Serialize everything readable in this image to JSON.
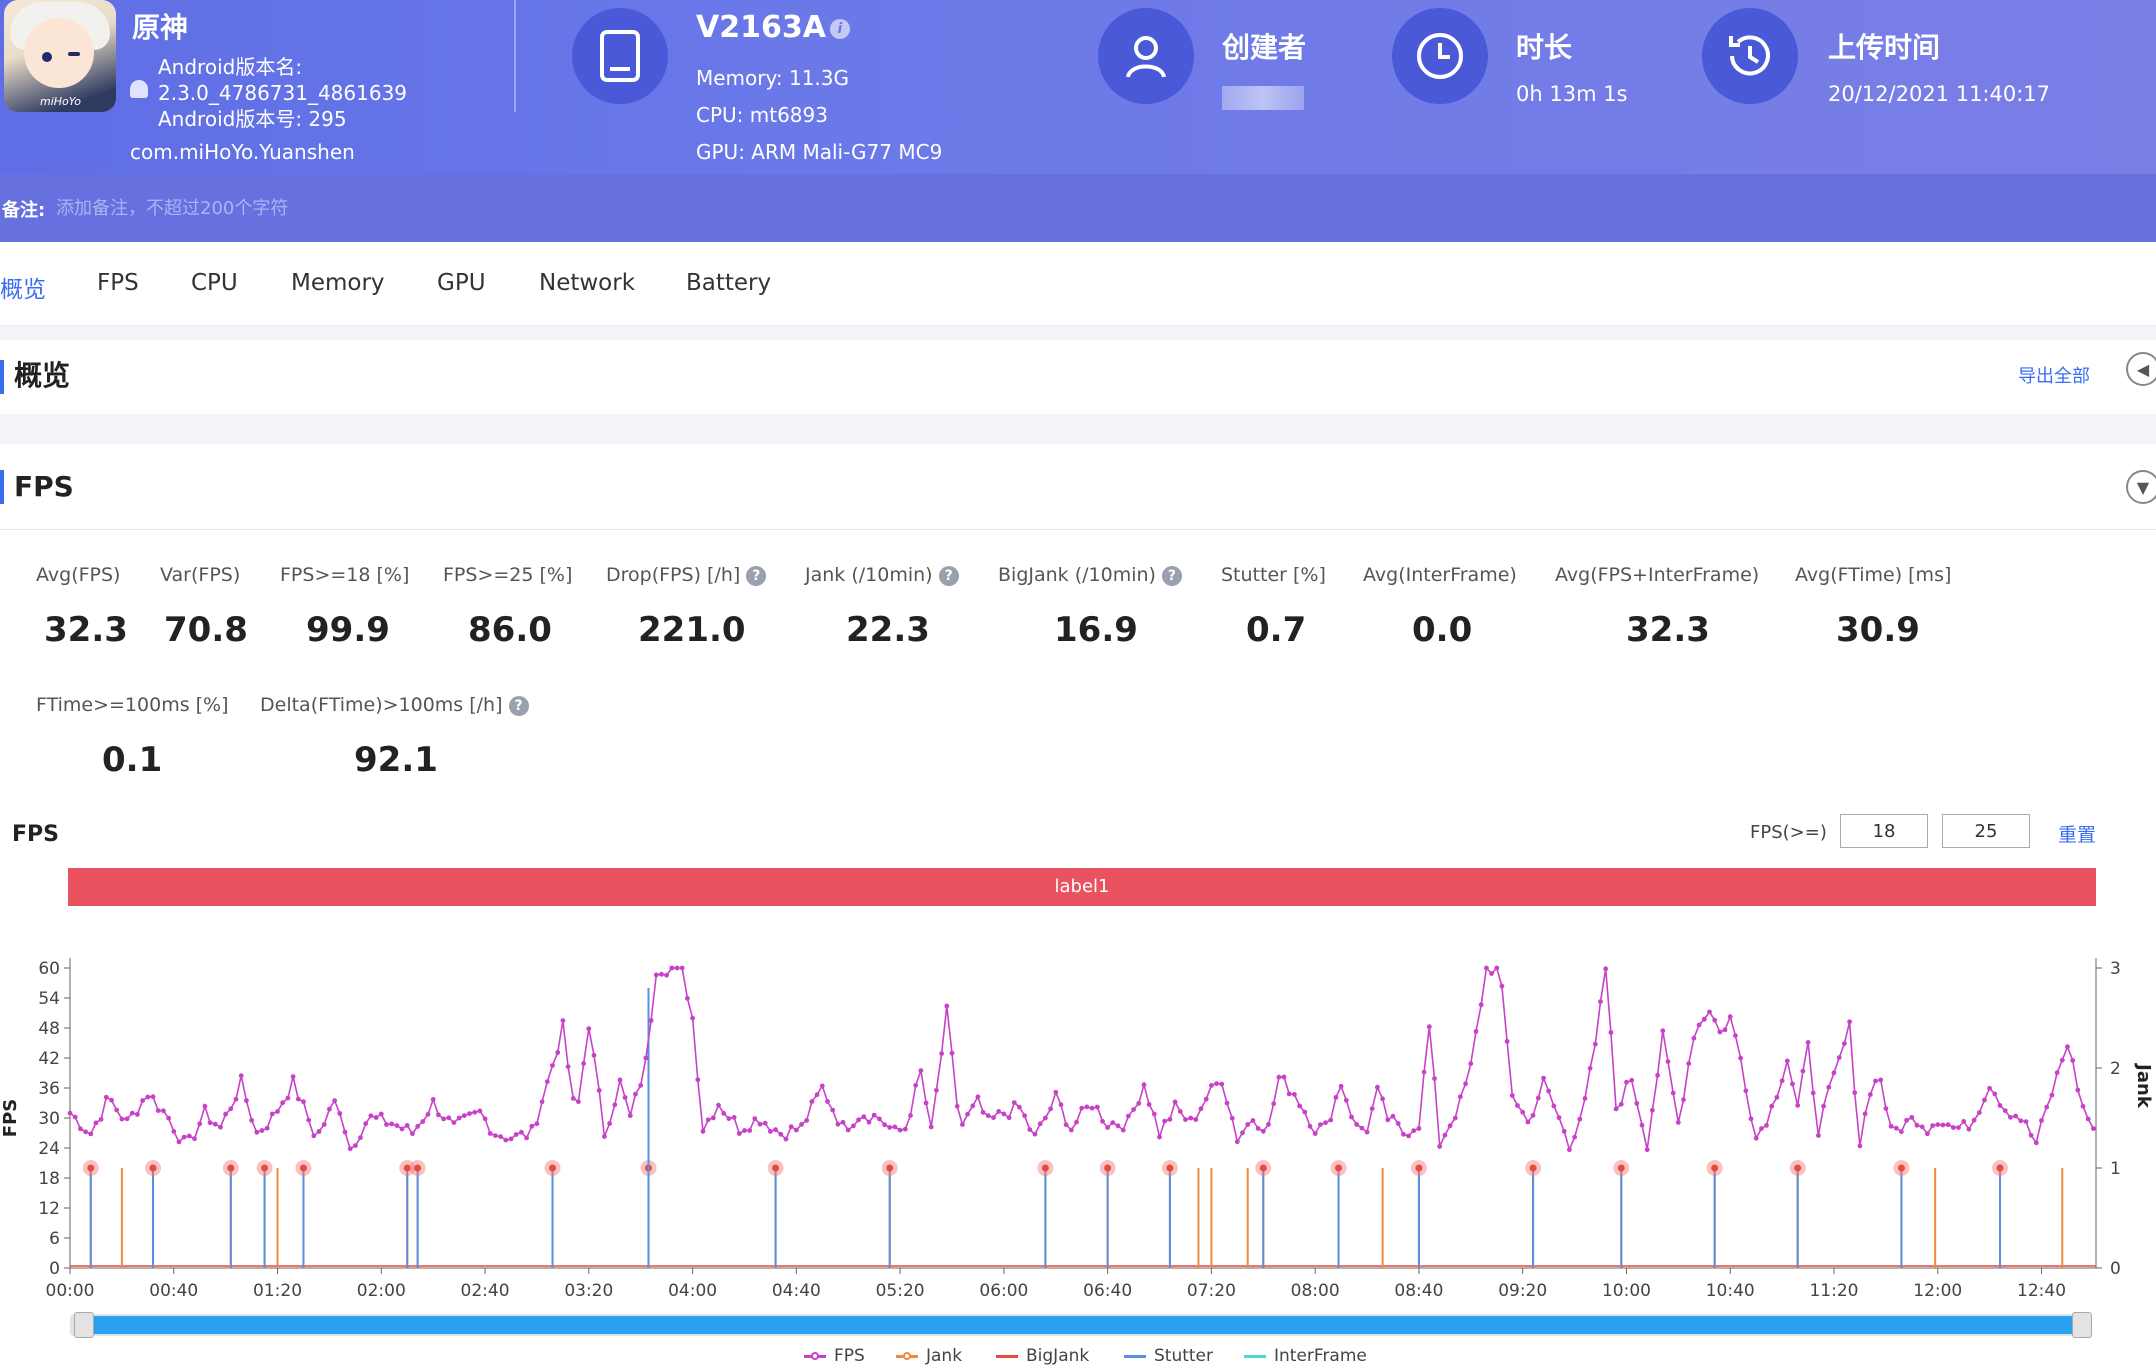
{
  "app": {
    "name": "原神",
    "icon_brand": "miHoYo",
    "version_name_label": "Android版本名:",
    "version_name": "2.3.0_4786731_4861639",
    "version_code_label": "Android版本号: 295",
    "package": "com.miHoYo.Yuanshen"
  },
  "device": {
    "model": "V2163A",
    "memory": "Memory: 11.3G",
    "cpu": "CPU: mt6893",
    "gpu": "GPU: ARM Mali-G77 MC9"
  },
  "creator": {
    "label": "创建者",
    "value": ""
  },
  "duration": {
    "label": "时长",
    "value": "0h 13m 1s"
  },
  "upload": {
    "label": "上传时间",
    "value": "20/12/2021 11:40:17"
  },
  "notes": {
    "label": "备注:",
    "placeholder": "添加备注，不超过200个字符"
  },
  "tabs": [
    {
      "label": "概览",
      "active": true
    },
    {
      "label": "FPS"
    },
    {
      "label": "CPU"
    },
    {
      "label": "Memory"
    },
    {
      "label": "GPU"
    },
    {
      "label": "Network"
    },
    {
      "label": "Battery"
    }
  ],
  "overview": {
    "title": "概览",
    "export_label": "导出全部"
  },
  "fps_section": {
    "title": "FPS"
  },
  "metrics_row1": [
    {
      "label": "Avg(FPS)",
      "value": "32.3"
    },
    {
      "label": "Var(FPS)",
      "value": "70.8"
    },
    {
      "label": "FPS>=18 [%]",
      "value": "99.9"
    },
    {
      "label": "FPS>=25 [%]",
      "value": "86.0"
    },
    {
      "label": "Drop(FPS) [/h]",
      "value": "221.0"
    },
    {
      "label": "Jank (/10min)",
      "value": "22.3"
    },
    {
      "label": "BigJank (/10min)",
      "value": "16.9"
    },
    {
      "label": "Stutter [%]",
      "value": "0.7"
    },
    {
      "label": "Avg(InterFrame)",
      "value": "0.0"
    },
    {
      "label": "Avg(FPS+InterFrame)",
      "value": "32.3"
    },
    {
      "label": "Avg(FTime) [ms]",
      "value": "30.9"
    }
  ],
  "metrics_row2": [
    {
      "label": "FTime>=100ms [%]",
      "value": "0.1"
    },
    {
      "label": "Delta(FTime)>100ms [/h]",
      "value": "92.1"
    }
  ],
  "chart_controls": {
    "title": "FPS",
    "threshold_label": "FPS(>=)",
    "threshold_low": "18",
    "threshold_high": "25",
    "reset_label": "重置",
    "band_label": "label1"
  },
  "chart_data": {
    "type": "line",
    "y_left_label": "FPS",
    "y_right_label": "Jank",
    "y_left_ticks": [
      "0",
      "6",
      "12",
      "18",
      "24",
      "30",
      "36",
      "42",
      "48",
      "54",
      "60"
    ],
    "y_right_ticks": [
      "0",
      "1",
      "2",
      "3"
    ],
    "y_left_range": [
      0,
      60
    ],
    "y_right_range": [
      0,
      3
    ],
    "x_range_seconds": [
      0,
      781
    ],
    "x_ticks": [
      "00:00",
      "00:40",
      "01:20",
      "02:00",
      "02:40",
      "03:20",
      "04:00",
      "04:40",
      "05:20",
      "06:00",
      "06:40",
      "07:20",
      "08:00",
      "08:40",
      "09:20",
      "10:00",
      "10:40",
      "11:20",
      "12:00",
      "12:40"
    ],
    "series": [
      {
        "name": "FPS",
        "color": "#c742c7",
        "keyframes": [
          [
            0,
            31
          ],
          [
            8,
            27
          ],
          [
            15,
            34
          ],
          [
            22,
            29
          ],
          [
            30,
            35
          ],
          [
            38,
            30
          ],
          [
            45,
            24
          ],
          [
            52,
            31
          ],
          [
            58,
            28
          ],
          [
            66,
            37
          ],
          [
            72,
            27
          ],
          [
            78,
            30
          ],
          [
            86,
            37
          ],
          [
            95,
            26
          ],
          [
            103,
            34
          ],
          [
            108,
            24
          ],
          [
            115,
            30
          ],
          [
            124,
            29
          ],
          [
            132,
            27
          ],
          [
            140,
            33
          ],
          [
            148,
            28
          ],
          [
            158,
            31
          ],
          [
            164,
            27
          ],
          [
            171,
            26
          ],
          [
            178,
            27
          ],
          [
            184,
            37
          ],
          [
            190,
            48
          ],
          [
            195,
            29
          ],
          [
            200,
            49
          ],
          [
            206,
            27
          ],
          [
            212,
            37
          ],
          [
            216,
            30
          ],
          [
            222,
            41
          ],
          [
            226,
            60
          ],
          [
            230,
            60
          ],
          [
            236,
            60
          ],
          [
            240,
            50
          ],
          [
            244,
            28
          ],
          [
            250,
            33
          ],
          [
            258,
            28
          ],
          [
            266,
            30
          ],
          [
            274,
            27
          ],
          [
            282,
            28
          ],
          [
            290,
            36
          ],
          [
            298,
            28
          ],
          [
            305,
            31
          ],
          [
            312,
            30
          ],
          [
            318,
            27
          ],
          [
            322,
            28
          ],
          [
            328,
            39
          ],
          [
            332,
            27
          ],
          [
            338,
            51
          ],
          [
            343,
            28
          ],
          [
            350,
            33
          ],
          [
            354,
            29
          ],
          [
            360,
            31
          ],
          [
            366,
            32
          ],
          [
            372,
            26
          ],
          [
            380,
            34
          ],
          [
            386,
            28
          ],
          [
            394,
            33
          ],
          [
            400,
            29
          ],
          [
            408,
            29
          ],
          [
            414,
            37
          ],
          [
            420,
            27
          ],
          [
            426,
            32
          ],
          [
            432,
            29
          ],
          [
            438,
            34
          ],
          [
            444,
            38
          ],
          [
            450,
            26
          ],
          [
            456,
            30
          ],
          [
            462,
            28
          ],
          [
            466,
            38
          ],
          [
            472,
            35
          ],
          [
            480,
            28
          ],
          [
            484,
            28
          ],
          [
            490,
            37
          ],
          [
            496,
            28
          ],
          [
            500,
            28
          ],
          [
            504,
            35
          ],
          [
            508,
            30
          ],
          [
            514,
            27
          ],
          [
            520,
            29
          ],
          [
            524,
            48
          ],
          [
            528,
            25
          ],
          [
            536,
            33
          ],
          [
            540,
            40
          ],
          [
            546,
            60
          ],
          [
            551,
            60
          ],
          [
            556,
            35
          ],
          [
            562,
            29
          ],
          [
            568,
            37
          ],
          [
            574,
            30
          ],
          [
            578,
            24
          ],
          [
            585,
            36
          ],
          [
            588,
            44
          ],
          [
            592,
            60
          ],
          [
            596,
            32
          ],
          [
            602,
            38
          ],
          [
            608,
            25
          ],
          [
            614,
            46
          ],
          [
            620,
            29
          ],
          [
            626,
            47
          ],
          [
            632,
            52
          ],
          [
            636,
            47
          ],
          [
            640,
            50
          ],
          [
            644,
            42
          ],
          [
            650,
            26
          ],
          [
            656,
            32
          ],
          [
            662,
            42
          ],
          [
            666,
            32
          ],
          [
            670,
            44
          ],
          [
            674,
            28
          ],
          [
            680,
            38
          ],
          [
            686,
            48
          ],
          [
            690,
            25
          ],
          [
            694,
            36
          ],
          [
            698,
            38
          ],
          [
            702,
            27
          ],
          [
            708,
            29
          ],
          [
            712,
            30
          ],
          [
            716,
            28
          ],
          [
            720,
            30
          ],
          [
            726,
            28
          ],
          [
            730,
            28
          ],
          [
            734,
            30
          ],
          [
            740,
            37
          ],
          [
            746,
            32
          ],
          [
            752,
            30
          ],
          [
            758,
            25
          ],
          [
            764,
            35
          ],
          [
            770,
            45
          ],
          [
            776,
            32
          ],
          [
            781,
            27
          ]
        ]
      },
      {
        "name": "Jank",
        "color": "#f08a3c"
      },
      {
        "name": "BigJank",
        "color": "#e84a3c"
      },
      {
        "name": "Stutter",
        "color": "#5b8ee0"
      },
      {
        "name": "InterFrame",
        "color": "#4ed6d6"
      }
    ],
    "jank_events_seconds": [
      8,
      20,
      32,
      62,
      75,
      80,
      90,
      130,
      134,
      186,
      223,
      272,
      316,
      376,
      400,
      424,
      435,
      440,
      454,
      460,
      489,
      506,
      520,
      564,
      598,
      634,
      666,
      706,
      719,
      744,
      768
    ],
    "bigjank_events_seconds": [
      8,
      32,
      62,
      75,
      90,
      130,
      134,
      186,
      223,
      272,
      316,
      376,
      400,
      424,
      460,
      489,
      520,
      564,
      598,
      634,
      666,
      706,
      744
    ],
    "stutter_spike_seconds": 223,
    "stutter_spike_value": 2.8
  }
}
